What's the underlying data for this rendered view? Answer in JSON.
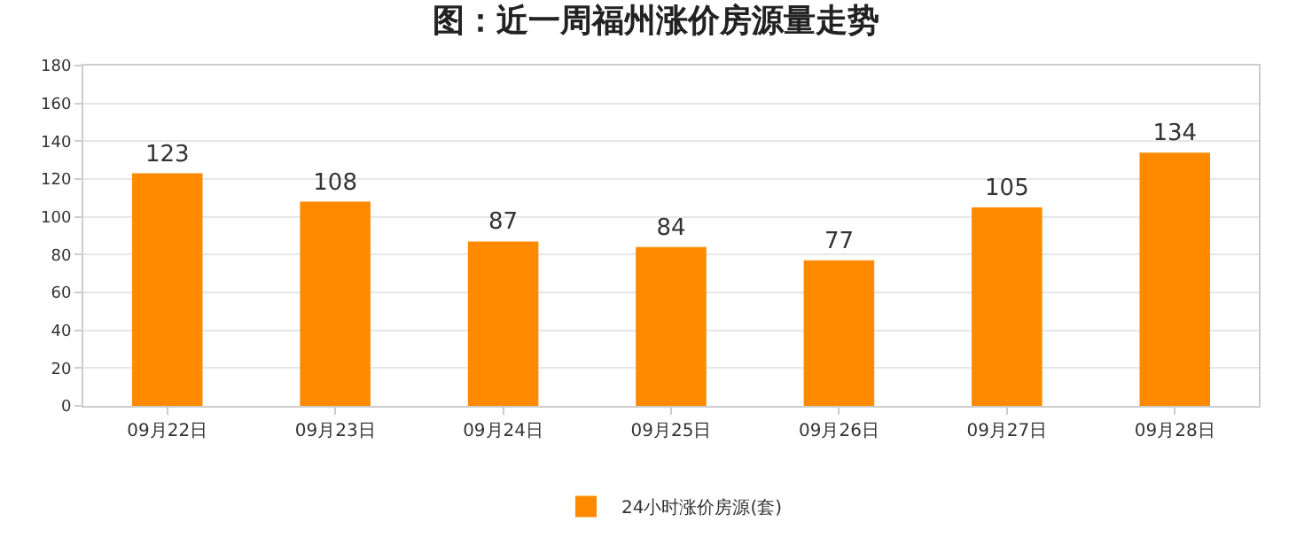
{
  "chart_data": {
    "type": "bar",
    "title": "图：近一周福州涨价房源量走势",
    "categories": [
      "09月22日",
      "09月23日",
      "09月24日",
      "09月25日",
      "09月26日",
      "09月27日",
      "09月28日"
    ],
    "series": [
      {
        "name": "24小时涨价房源(套)",
        "color": "#ff8a00",
        "values": [
          123,
          108,
          87,
          84,
          77,
          105,
          134
        ]
      }
    ],
    "ylim": [
      0,
      180
    ],
    "yticks": [
      0,
      20,
      40,
      60,
      80,
      100,
      120,
      140,
      160,
      180
    ],
    "grid": "y",
    "legend": "bottom",
    "data_labels": true
  }
}
